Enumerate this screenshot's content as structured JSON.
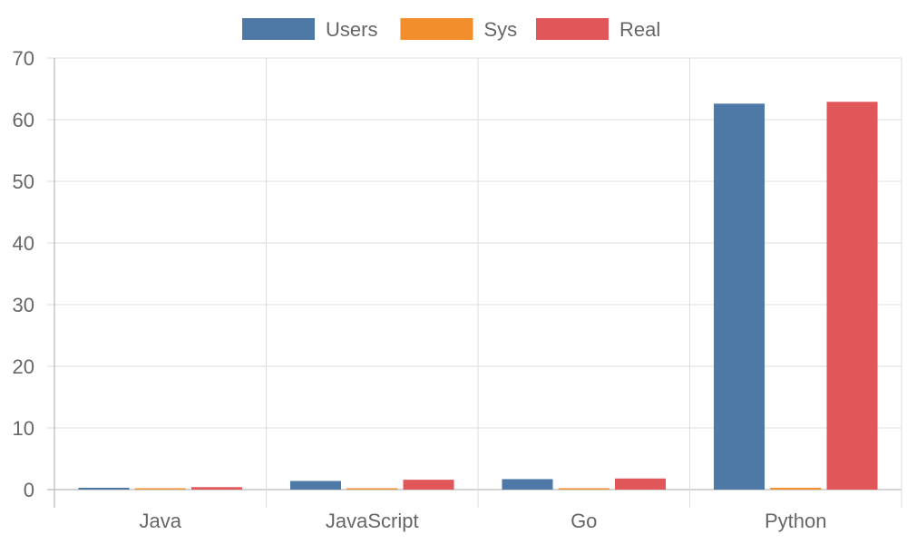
{
  "chart_data": {
    "type": "bar",
    "title": "",
    "xlabel": "",
    "ylabel": "",
    "categories": [
      "Java",
      "JavaScript",
      "Go",
      "Python"
    ],
    "series": [
      {
        "name": "Users",
        "color": "#4e79a7",
        "values": [
          0.3,
          1.4,
          1.7,
          62.6
        ]
      },
      {
        "name": "Sys",
        "color": "#f28e2b",
        "values": [
          0.05,
          0.05,
          0.05,
          0.3
        ]
      },
      {
        "name": "Real",
        "color": "#e15759",
        "values": [
          0.4,
          1.6,
          1.8,
          62.9
        ]
      }
    ],
    "ylim": [
      0,
      70
    ],
    "yticks": [
      0,
      10,
      20,
      30,
      40,
      50,
      60,
      70
    ],
    "grid": true,
    "legend_position": "top"
  }
}
